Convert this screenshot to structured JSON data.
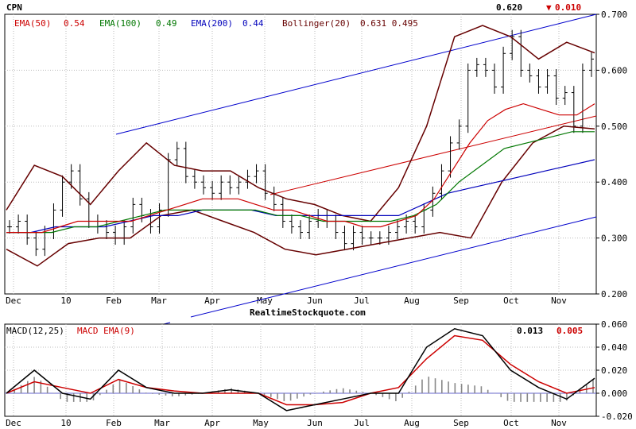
{
  "ticker": "CPN",
  "last_price": "0.620",
  "change": "0.010",
  "change_arrow": "▼",
  "watermark": "RealtimeStockquote.com",
  "price_panel": {
    "legend": [
      {
        "label": "EMA(50)",
        "value": "0.54",
        "color": "#cc0000"
      },
      {
        "label": "EMA(100)",
        "value": "0.49",
        "color": "#007700"
      },
      {
        "label": "EMA(200)",
        "value": "0.44",
        "color": "#0000bb"
      },
      {
        "label": "Bollinger(20)",
        "value": "0.631 0.495",
        "color": "#660000"
      }
    ],
    "y_ticks": [
      "0.700",
      "0.600",
      "0.500",
      "0.400",
      "0.300",
      "0.200"
    ],
    "ylim": [
      0.2,
      0.7
    ]
  },
  "macd_panel": {
    "label": "MACD(12,25)",
    "signal_label": "MACD EMA(9)",
    "macd_value": "0.013",
    "signal_value": "0.005",
    "y_ticks": [
      "0.060",
      "0.040",
      "0.020",
      "0.000",
      "-0.020"
    ],
    "ylim": [
      -0.02,
      0.06
    ]
  },
  "x_labels": [
    "Dec",
    "10",
    "Feb",
    "Mar",
    "Apr",
    "May",
    "Jun",
    "Jul",
    "Aug",
    "Sep",
    "Oct",
    "Nov"
  ],
  "colors": {
    "price_bars": "#000000",
    "ema50": "#cc0000",
    "ema100": "#007700",
    "ema200": "#0000bb",
    "bollinger": "#660000",
    "channel": "#0000cc",
    "regression": "#cc0000",
    "macd": "#000000",
    "signal": "#cc0000",
    "histogram": "#888888",
    "grid": "#bbbbbb"
  },
  "chart_data": {
    "type": "line",
    "title": "CPN",
    "x_labels": [
      "Dec",
      "10",
      "Feb",
      "Mar",
      "Apr",
      "May",
      "Jun",
      "Jul",
      "Aug",
      "Sep",
      "Oct",
      "Nov"
    ],
    "price_close": [
      0.32,
      0.33,
      0.3,
      0.28,
      0.31,
      0.35,
      0.4,
      0.42,
      0.37,
      0.33,
      0.32,
      0.31,
      0.3,
      0.32,
      0.36,
      0.34,
      0.32,
      0.35,
      0.44,
      0.46,
      0.41,
      0.4,
      0.39,
      0.38,
      0.4,
      0.39,
      0.4,
      0.41,
      0.42,
      0.38,
      0.36,
      0.33,
      0.32,
      0.31,
      0.33,
      0.34,
      0.33,
      0.31,
      0.29,
      0.31,
      0.3,
      0.3,
      0.3,
      0.31,
      0.32,
      0.33,
      0.32,
      0.35,
      0.38,
      0.42,
      0.47,
      0.5,
      0.6,
      0.61,
      0.6,
      0.57,
      0.63,
      0.66,
      0.6,
      0.59,
      0.57,
      0.59,
      0.55,
      0.56,
      0.5,
      0.6,
      0.62
    ],
    "ema50": [
      0.31,
      0.31,
      0.31,
      0.32,
      0.33,
      0.33,
      0.33,
      0.33,
      0.34,
      0.35,
      0.36,
      0.37,
      0.37,
      0.37,
      0.36,
      0.35,
      0.35,
      0.34,
      0.33,
      0.33,
      0.32,
      0.32,
      0.33,
      0.34,
      0.37,
      0.42,
      0.47,
      0.51,
      0.53,
      0.54,
      0.53,
      0.52,
      0.52,
      0.54
    ],
    "ema100": [
      0.31,
      0.31,
      0.31,
      0.32,
      0.32,
      0.33,
      0.34,
      0.35,
      0.35,
      0.35,
      0.35,
      0.35,
      0.34,
      0.34,
      0.33,
      0.33,
      0.33,
      0.33,
      0.34,
      0.36,
      0.4,
      0.43,
      0.46,
      0.47,
      0.48,
      0.49,
      0.49
    ],
    "ema200": [
      0.31,
      0.31,
      0.32,
      0.32,
      0.32,
      0.33,
      0.34,
      0.34,
      0.35,
      0.35,
      0.35,
      0.34,
      0.34,
      0.34,
      0.34,
      0.34,
      0.34,
      0.36,
      0.38,
      0.39,
      0.4,
      0.41,
      0.42,
      0.43,
      0.44
    ],
    "bollinger_upper": [
      0.35,
      0.43,
      0.41,
      0.36,
      0.42,
      0.47,
      0.43,
      0.42,
      0.42,
      0.39,
      0.37,
      0.36,
      0.34,
      0.33,
      0.39,
      0.5,
      0.66,
      0.68,
      0.66,
      0.62,
      0.65,
      0.631
    ],
    "bollinger_lower": [
      0.28,
      0.25,
      0.29,
      0.3,
      0.3,
      0.34,
      0.35,
      0.33,
      0.31,
      0.28,
      0.27,
      0.28,
      0.29,
      0.3,
      0.31,
      0.3,
      0.4,
      0.47,
      0.5,
      0.495
    ],
    "macd": [
      0.0,
      0.02,
      0.0,
      -0.005,
      0.02,
      0.005,
      0.0,
      0.0,
      0.003,
      0.0,
      -0.015,
      -0.01,
      -0.005,
      0.0,
      0.0,
      0.04,
      0.056,
      0.05,
      0.02,
      0.005,
      -0.005,
      0.013
    ],
    "macd_signal": [
      0.0,
      0.01,
      0.005,
      0.0,
      0.012,
      0.005,
      0.002,
      0.0,
      0.0,
      0.0,
      -0.01,
      -0.01,
      -0.008,
      0.0,
      0.005,
      0.03,
      0.05,
      0.046,
      0.025,
      0.01,
      0.0,
      0.005
    ]
  }
}
